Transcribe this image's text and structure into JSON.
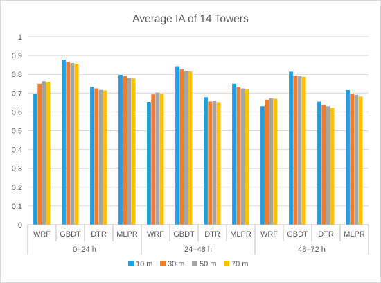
{
  "chart_data": {
    "type": "bar",
    "title": "Average IA of 14 Towers",
    "groups": [
      "0–24 h",
      "24–48 h",
      "48–72 h"
    ],
    "categories": [
      "WRF",
      "GBDT",
      "DTR",
      "MLPR"
    ],
    "series": [
      {
        "name": "10 m",
        "color": "#1f9ee0",
        "values": [
          [
            0.695,
            0.878,
            0.733,
            0.797
          ],
          [
            0.653,
            0.843,
            0.678,
            0.75
          ],
          [
            0.63,
            0.814,
            0.655,
            0.716
          ]
        ]
      },
      {
        "name": "30 m",
        "color": "#ed7d31",
        "values": [
          [
            0.75,
            0.866,
            0.725,
            0.79
          ],
          [
            0.693,
            0.826,
            0.655,
            0.731
          ],
          [
            0.665,
            0.793,
            0.638,
            0.697
          ]
        ]
      },
      {
        "name": "50 m",
        "color": "#a5a5a5",
        "values": [
          [
            0.763,
            0.86,
            0.717,
            0.779
          ],
          [
            0.703,
            0.819,
            0.66,
            0.725
          ],
          [
            0.673,
            0.791,
            0.63,
            0.691
          ]
        ]
      },
      {
        "name": "70 m",
        "color": "#ffc000",
        "values": [
          [
            0.76,
            0.856,
            0.714,
            0.779
          ],
          [
            0.697,
            0.815,
            0.652,
            0.72
          ],
          [
            0.67,
            0.787,
            0.622,
            0.681
          ]
        ]
      }
    ],
    "ylim": [
      0,
      1
    ],
    "yticks": [
      "0",
      "0.1",
      "0.2",
      "0.3",
      "0.4",
      "0.5",
      "0.6",
      "0.7",
      "0.8",
      "0.9",
      "1"
    ],
    "grid": true,
    "legend": "bottom"
  }
}
